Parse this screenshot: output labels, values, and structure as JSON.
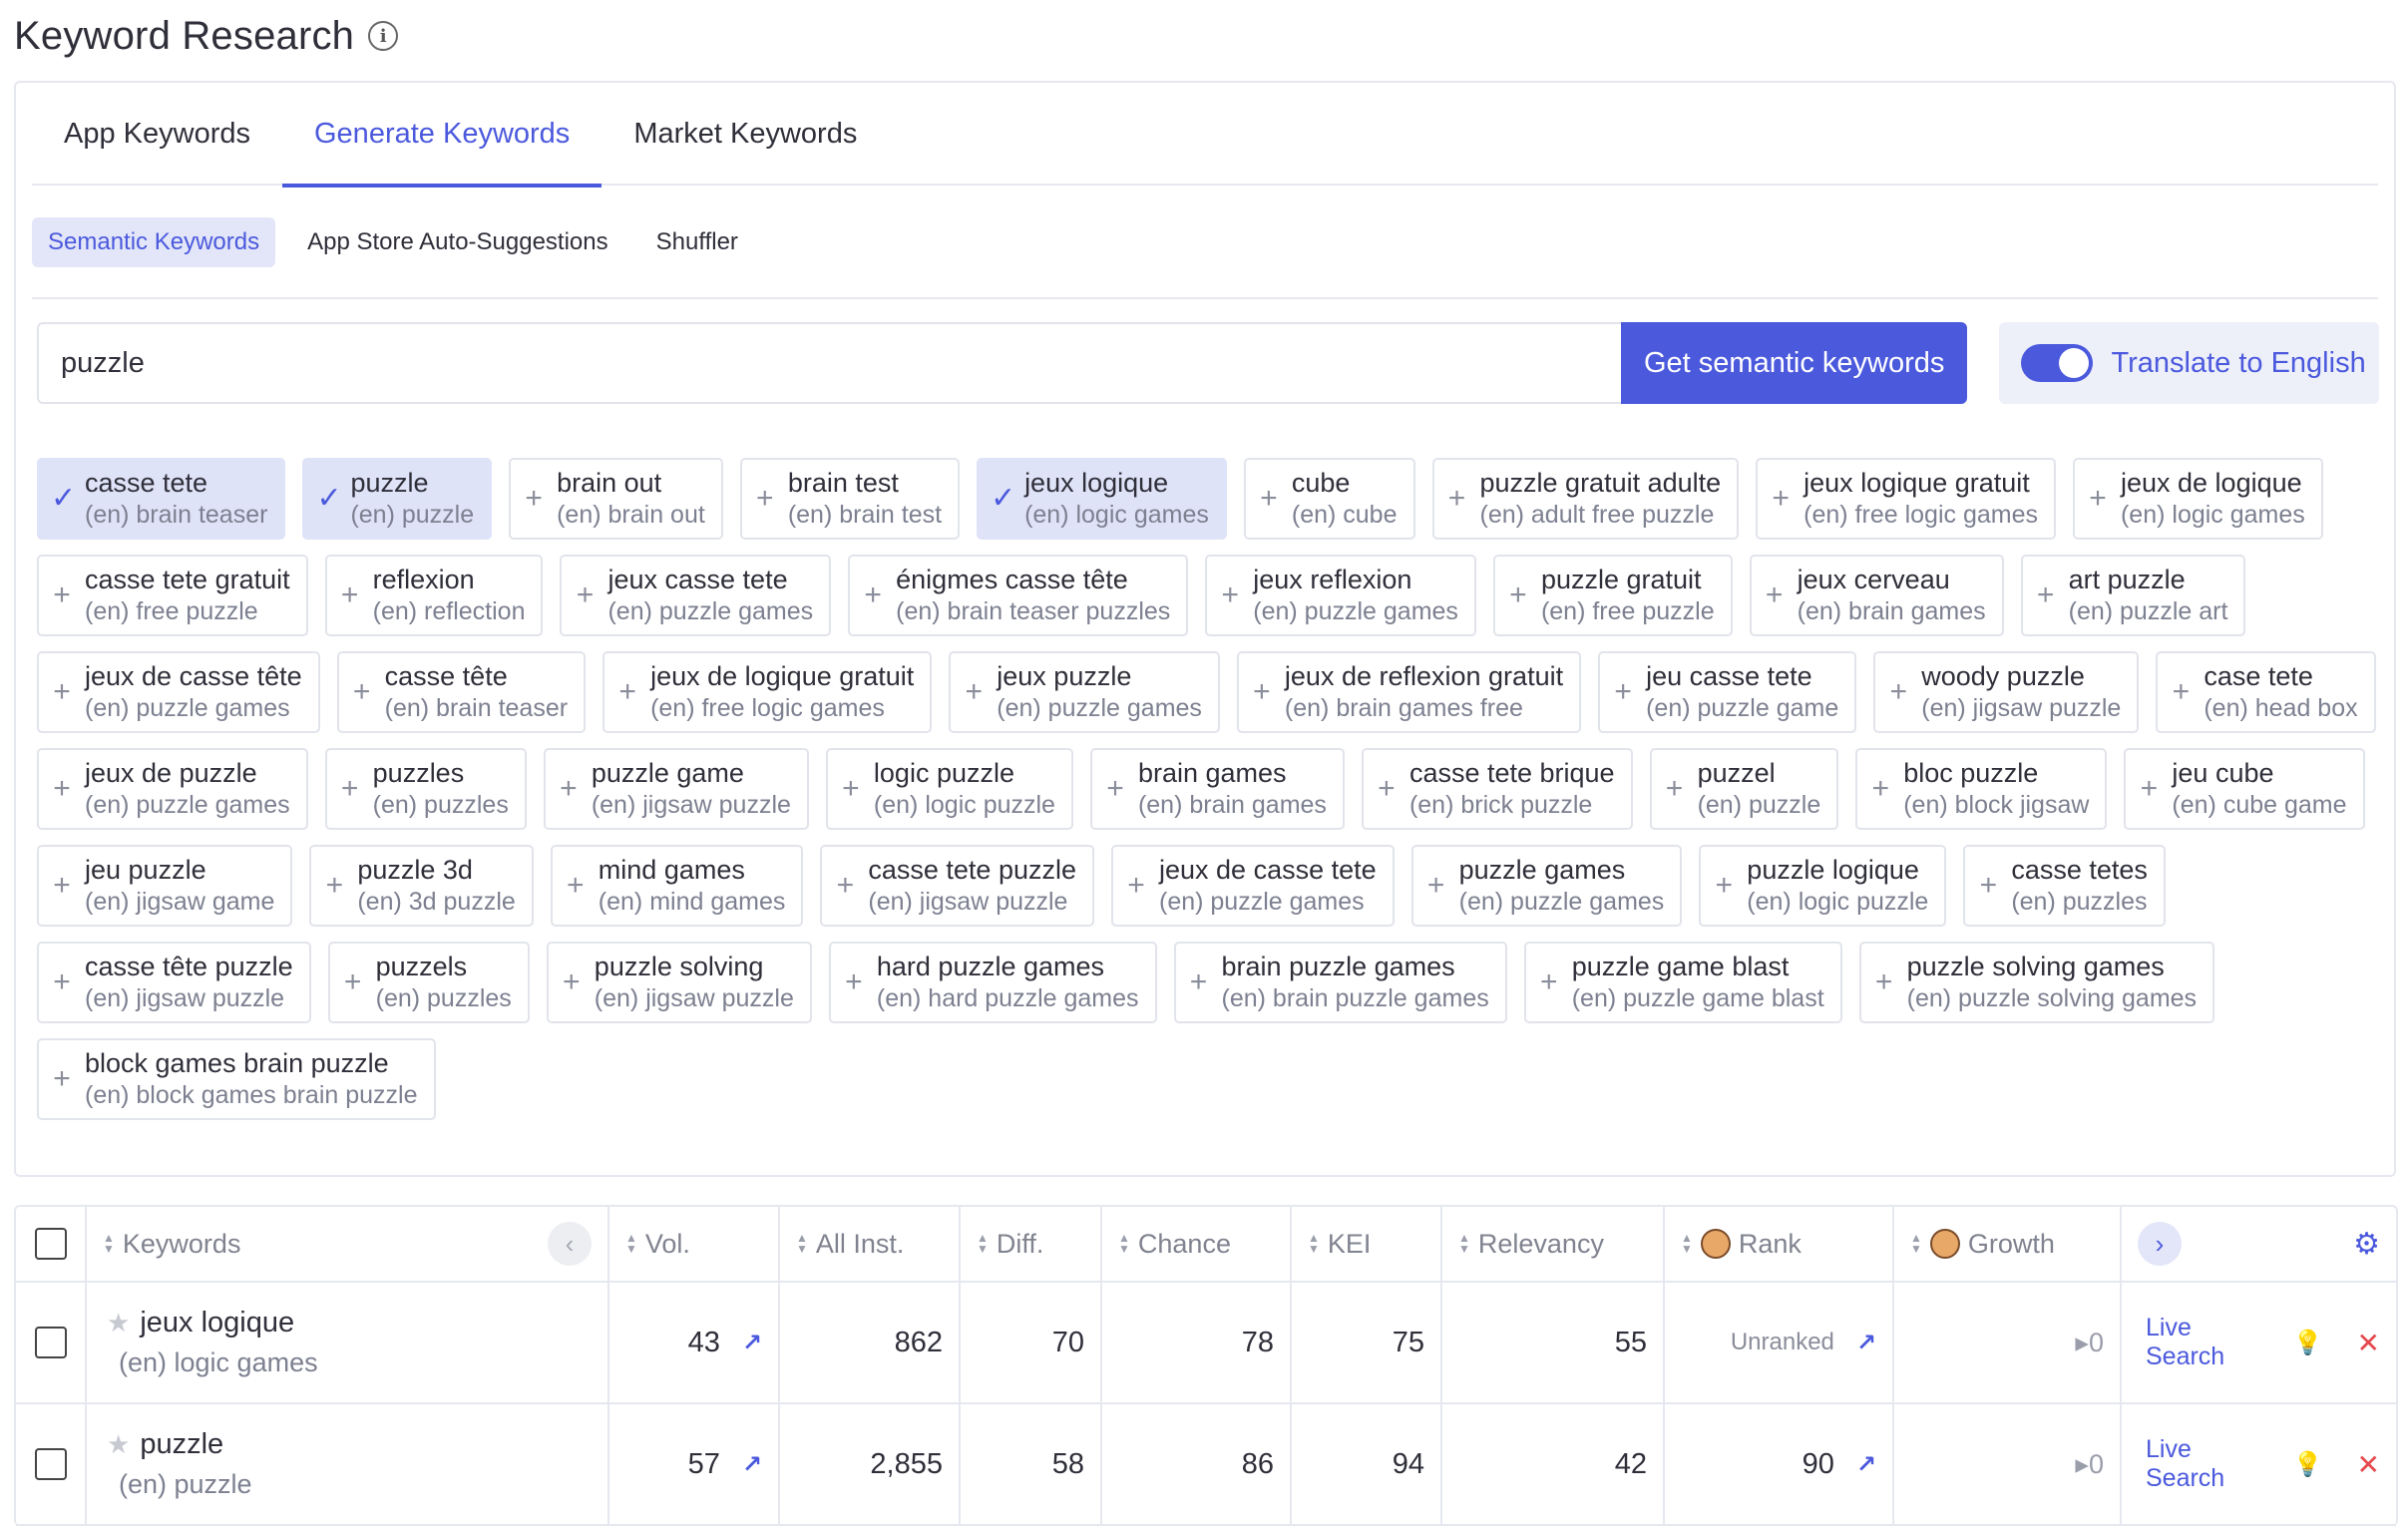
{
  "page": {
    "title": "Keyword Research"
  },
  "tabs": [
    "App Keywords",
    "Generate Keywords",
    "Market Keywords"
  ],
  "subtabs": [
    "Semantic Keywords",
    "App Store Auto-Suggestions",
    "Shuffler"
  ],
  "search": {
    "value": "puzzle",
    "button_label": "Get semantic keywords",
    "translate_label": "Translate to English",
    "translate_on": true
  },
  "chips": [
    {
      "kw": "casse tete",
      "tr": "(en) brain teaser",
      "selected": true
    },
    {
      "kw": "puzzle",
      "tr": "(en) puzzle",
      "selected": true
    },
    {
      "kw": "brain out",
      "tr": "(en) brain out",
      "selected": false
    },
    {
      "kw": "brain test",
      "tr": "(en) brain test",
      "selected": false
    },
    {
      "kw": "jeux logique",
      "tr": "(en) logic games",
      "selected": true
    },
    {
      "kw": "cube",
      "tr": "(en) cube",
      "selected": false
    },
    {
      "kw": "puzzle gratuit adulte",
      "tr": "(en) adult free puzzle",
      "selected": false
    },
    {
      "kw": "jeux logique gratuit",
      "tr": "(en) free logic games",
      "selected": false
    },
    {
      "kw": "jeux de logique",
      "tr": "(en) logic games",
      "selected": false
    },
    {
      "kw": "casse tete gratuit",
      "tr": "(en) free puzzle",
      "selected": false
    },
    {
      "kw": "reflexion",
      "tr": "(en) reflection",
      "selected": false
    },
    {
      "kw": "jeux casse tete",
      "tr": "(en) puzzle games",
      "selected": false
    },
    {
      "kw": "énigmes casse tête",
      "tr": "(en) brain teaser puzzles",
      "selected": false
    },
    {
      "kw": "jeux reflexion",
      "tr": "(en) puzzle games",
      "selected": false
    },
    {
      "kw": "puzzle gratuit",
      "tr": "(en) free puzzle",
      "selected": false
    },
    {
      "kw": "jeux cerveau",
      "tr": "(en) brain games",
      "selected": false
    },
    {
      "kw": "art puzzle",
      "tr": "(en) puzzle art",
      "selected": false
    },
    {
      "kw": "jeux de casse tête",
      "tr": "(en) puzzle games",
      "selected": false
    },
    {
      "kw": "casse tête",
      "tr": "(en) brain teaser",
      "selected": false
    },
    {
      "kw": "jeux de logique gratuit",
      "tr": "(en) free logic games",
      "selected": false
    },
    {
      "kw": "jeux puzzle",
      "tr": "(en) puzzle games",
      "selected": false
    },
    {
      "kw": "jeux de reflexion gratuit",
      "tr": "(en) brain games free",
      "selected": false
    },
    {
      "kw": "jeu casse tete",
      "tr": "(en) puzzle game",
      "selected": false
    },
    {
      "kw": "woody puzzle",
      "tr": "(en) jigsaw puzzle",
      "selected": false
    },
    {
      "kw": "case tete",
      "tr": "(en) head box",
      "selected": false
    },
    {
      "kw": "jeux de puzzle",
      "tr": "(en) puzzle games",
      "selected": false
    },
    {
      "kw": "puzzles",
      "tr": "(en) puzzles",
      "selected": false
    },
    {
      "kw": "puzzle game",
      "tr": "(en) jigsaw puzzle",
      "selected": false
    },
    {
      "kw": "logic puzzle",
      "tr": "(en) logic puzzle",
      "selected": false
    },
    {
      "kw": "brain games",
      "tr": "(en) brain games",
      "selected": false
    },
    {
      "kw": "casse tete brique",
      "tr": "(en) brick puzzle",
      "selected": false
    },
    {
      "kw": "puzzel",
      "tr": "(en) puzzle",
      "selected": false
    },
    {
      "kw": "bloc puzzle",
      "tr": "(en) block jigsaw",
      "selected": false
    },
    {
      "kw": "jeu cube",
      "tr": "(en) cube game",
      "selected": false
    },
    {
      "kw": "jeu puzzle",
      "tr": "(en) jigsaw game",
      "selected": false
    },
    {
      "kw": "puzzle 3d",
      "tr": "(en) 3d puzzle",
      "selected": false
    },
    {
      "kw": "mind games",
      "tr": "(en) mind games",
      "selected": false
    },
    {
      "kw": "casse tete puzzle",
      "tr": "(en) jigsaw puzzle",
      "selected": false
    },
    {
      "kw": "jeux de casse tete",
      "tr": "(en) puzzle games",
      "selected": false
    },
    {
      "kw": "puzzle games",
      "tr": "(en) puzzle games",
      "selected": false
    },
    {
      "kw": "puzzle logique",
      "tr": "(en) logic puzzle",
      "selected": false
    },
    {
      "kw": "casse tetes",
      "tr": "(en) puzzles",
      "selected": false
    },
    {
      "kw": "casse tête puzzle",
      "tr": "(en) jigsaw puzzle",
      "selected": false
    },
    {
      "kw": "puzzels",
      "tr": "(en) puzzles",
      "selected": false
    },
    {
      "kw": "puzzle solving",
      "tr": "(en) jigsaw puzzle",
      "selected": false
    },
    {
      "kw": "hard puzzle games",
      "tr": "(en) hard puzzle games",
      "selected": false
    },
    {
      "kw": "brain puzzle games",
      "tr": "(en) brain puzzle games",
      "selected": false
    },
    {
      "kw": "puzzle game blast",
      "tr": "(en) puzzle game blast",
      "selected": false
    },
    {
      "kw": "puzzle solving games",
      "tr": "(en) puzzle solving games",
      "selected": false
    },
    {
      "kw": "block games brain puzzle",
      "tr": "(en) block games brain puzzle",
      "selected": false
    }
  ],
  "table": {
    "headers": {
      "keywords": "Keywords",
      "vol": "Vol.",
      "inst": "All Inst.",
      "diff": "Diff.",
      "chance": "Chance",
      "kei": "KEI",
      "relevancy": "Relevancy",
      "rank": "Rank",
      "growth": "Growth"
    },
    "rows": [
      {
        "kw": "jeux logique",
        "tr": "(en) logic games",
        "vol": "43",
        "inst": "862",
        "diff": "70",
        "chance": "78",
        "kei": "75",
        "rel": "55",
        "rank": "Unranked",
        "growth": "0",
        "live": "Live Search"
      },
      {
        "kw": "puzzle",
        "tr": "(en) puzzle",
        "vol": "57",
        "inst": "2,855",
        "diff": "58",
        "chance": "86",
        "kei": "94",
        "rel": "42",
        "rank": "90",
        "growth": "0",
        "live": "Live Search"
      }
    ]
  },
  "colors": {
    "accent": "#4b59dd",
    "selected_chip": "#dfe3f7",
    "danger": "#e5484d"
  },
  "icons": [
    "info-icon",
    "check-icon",
    "plus-icon",
    "sort-icon",
    "chevron-left-icon",
    "chevron-right-icon",
    "avatar-icon",
    "gear-icon",
    "star-icon",
    "trend-chart-icon",
    "bulb-icon",
    "close-icon",
    "growth-arrow-icon"
  ]
}
